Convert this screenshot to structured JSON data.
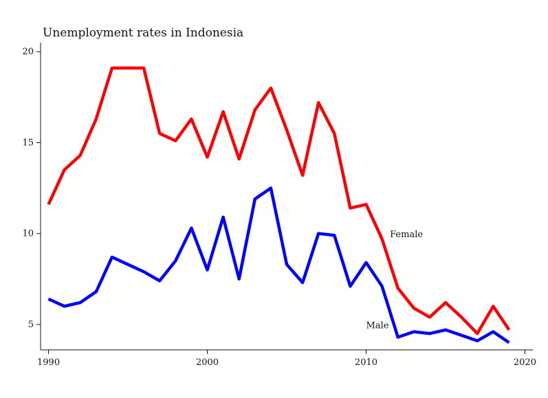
{
  "chart_data": {
    "type": "line",
    "title": "Unemployment rates in Indonesia",
    "xlabel": "",
    "ylabel": "",
    "xlim": [
      1989.5,
      2020.5
    ],
    "ylim": [
      3.6,
      20.5
    ],
    "x_ticks": [
      1990,
      2000,
      2010,
      2020
    ],
    "y_ticks": [
      5,
      10,
      15,
      20
    ],
    "grid": false,
    "legend": "none",
    "x": [
      1990,
      1991,
      1992,
      1993,
      1994,
      1995,
      1996,
      1997,
      1998,
      1999,
      2000,
      2001,
      2002,
      2003,
      2004,
      2005,
      2006,
      2007,
      2008,
      2009,
      2010,
      2011,
      2012,
      2013,
      2014,
      2015,
      2016,
      2017,
      2018,
      2019
    ],
    "series": [
      {
        "name": "Female",
        "color": "#ff0000",
        "label_at": [
          2011.5,
          9.8
        ],
        "values": [
          11.6,
          13.5,
          14.3,
          16.3,
          19.1,
          19.1,
          19.1,
          15.5,
          15.1,
          16.3,
          14.2,
          16.7,
          14.1,
          16.8,
          18.0,
          15.7,
          13.2,
          17.2,
          15.5,
          11.4,
          11.6,
          9.7,
          7.0,
          5.9,
          5.4,
          6.2,
          5.4,
          4.5,
          6.0,
          4.7
        ]
      },
      {
        "name": "Male",
        "color": "#0000ff",
        "label_at": [
          2010,
          4.8
        ],
        "values": [
          6.4,
          6.0,
          6.2,
          6.8,
          8.7,
          8.3,
          7.9,
          7.4,
          8.5,
          10.3,
          8.0,
          10.9,
          7.5,
          11.9,
          12.5,
          8.3,
          7.3,
          10.0,
          9.9,
          7.1,
          8.4,
          7.1,
          4.3,
          4.6,
          4.5,
          4.7,
          4.4,
          4.1,
          4.6,
          4.0
        ]
      }
    ]
  }
}
